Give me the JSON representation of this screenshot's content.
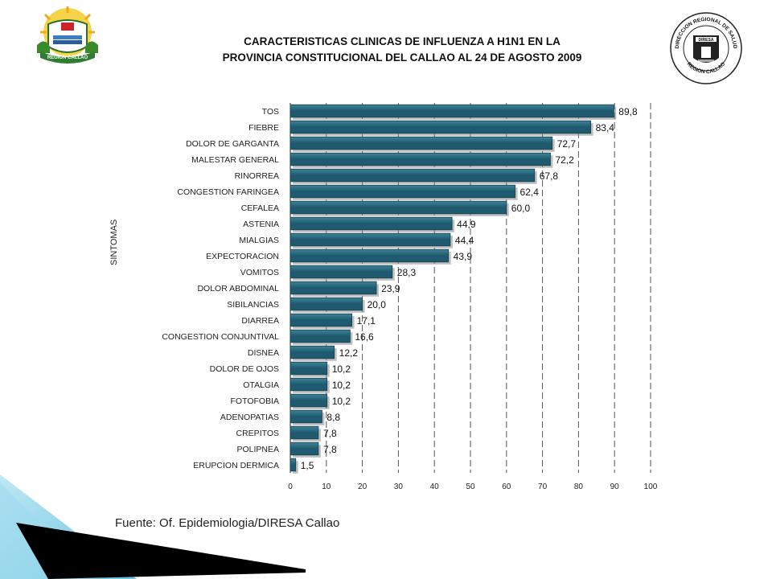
{
  "header": {
    "title_line1": "CARACTERISTICAS CLINICAS DE INFLUENZA A H1N1 EN LA",
    "title_line2": "PROVINCIA CONSTITUCIONAL DEL CALLAO AL 24 DE AGOSTO  2009",
    "logo_left_text": "REGION CALLAO",
    "logo_right_text_top": "DIRECCION REGIONAL DE SALUD",
    "logo_right_text_bottom": "REGION CALLAO",
    "logo_right_badge": "DIRESA"
  },
  "footer": {
    "source": "Fuente: Of. Epidemiologia/DIRESA Callao"
  },
  "colors": {
    "bar": "#1f5a6e",
    "bar_highlight": "#3e8498",
    "grid": "#555555",
    "corner_light": "#8fd3ea",
    "corner_dark": "#000000"
  },
  "chart_data": {
    "type": "bar",
    "orientation": "horizontal",
    "title": "CARACTERISTICAS CLINICAS DE INFLUENZA A H1N1 EN LA PROVINCIA CONSTITUCIONAL DEL CALLAO AL 24 DE AGOSTO  2009",
    "ylabel": "SINTOMAS",
    "xlabel": "",
    "xlim": [
      0,
      100
    ],
    "xticks": [
      "0",
      "10",
      "20",
      "30",
      "40",
      "50",
      "60",
      "70",
      "80",
      "90",
      "100"
    ],
    "grid": "vertical dashed",
    "categories": [
      "TOS",
      "FIEBRE",
      "DOLOR DE GARGANTA",
      "MALESTAR GENERAL",
      "RINORREA",
      "CONGESTION FARINGEA",
      "CEFALEA",
      "ASTENIA",
      "MIALGIAS",
      "EXPECTORACION",
      "VOMITOS",
      "DOLOR ABDOMINAL",
      "SIBILANCIAS",
      "DIARREA",
      "CONGESTION CONJUNTIVAL",
      "DISNEA",
      "DOLOR DE OJOS",
      "OTALGIA",
      "FOTOFOBIA",
      "ADENOPATIAS",
      "CREPITOS",
      "POLIPNEA",
      "ERUPCION DERMICA"
    ],
    "values": [
      89.8,
      83.4,
      72.7,
      72.2,
      67.8,
      62.4,
      60.0,
      44.9,
      44.4,
      43.9,
      28.3,
      23.9,
      20.0,
      17.1,
      16.6,
      12.2,
      10.2,
      10.2,
      10.2,
      8.8,
      7.8,
      7.8,
      1.5
    ],
    "value_labels": [
      "89,8",
      "83,4",
      "72,7",
      "72,2",
      "67,8",
      "62,4",
      "60,0",
      "44,9",
      "44,4",
      "43,9",
      "28,3",
      "23,9",
      "20,0",
      "17,1",
      "16,6",
      "12,2",
      "10,2",
      "10,2",
      "10,2",
      "8,8",
      "7,8",
      "7,8",
      "1,5"
    ]
  }
}
